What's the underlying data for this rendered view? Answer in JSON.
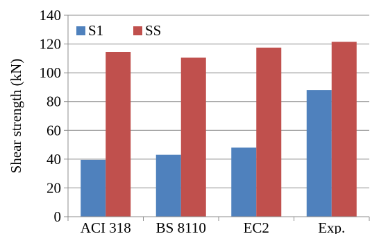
{
  "chart_data": {
    "type": "bar",
    "title": "",
    "xlabel": "",
    "ylabel": "Shear strength (kN)",
    "ylim": [
      0,
      140
    ],
    "yticks": [
      0,
      20,
      40,
      60,
      80,
      100,
      120,
      140
    ],
    "grid": true,
    "legend_position": "top-left",
    "categories": [
      "ACI 318",
      "BS 8110",
      "EC2",
      "Exp."
    ],
    "series": [
      {
        "name": "S1",
        "color": "#4f81bd",
        "values": [
          39.5,
          43,
          48,
          88
        ]
      },
      {
        "name": "SS",
        "color": "#c0504d",
        "values": [
          114.5,
          110.5,
          117.5,
          121.5
        ]
      }
    ]
  }
}
